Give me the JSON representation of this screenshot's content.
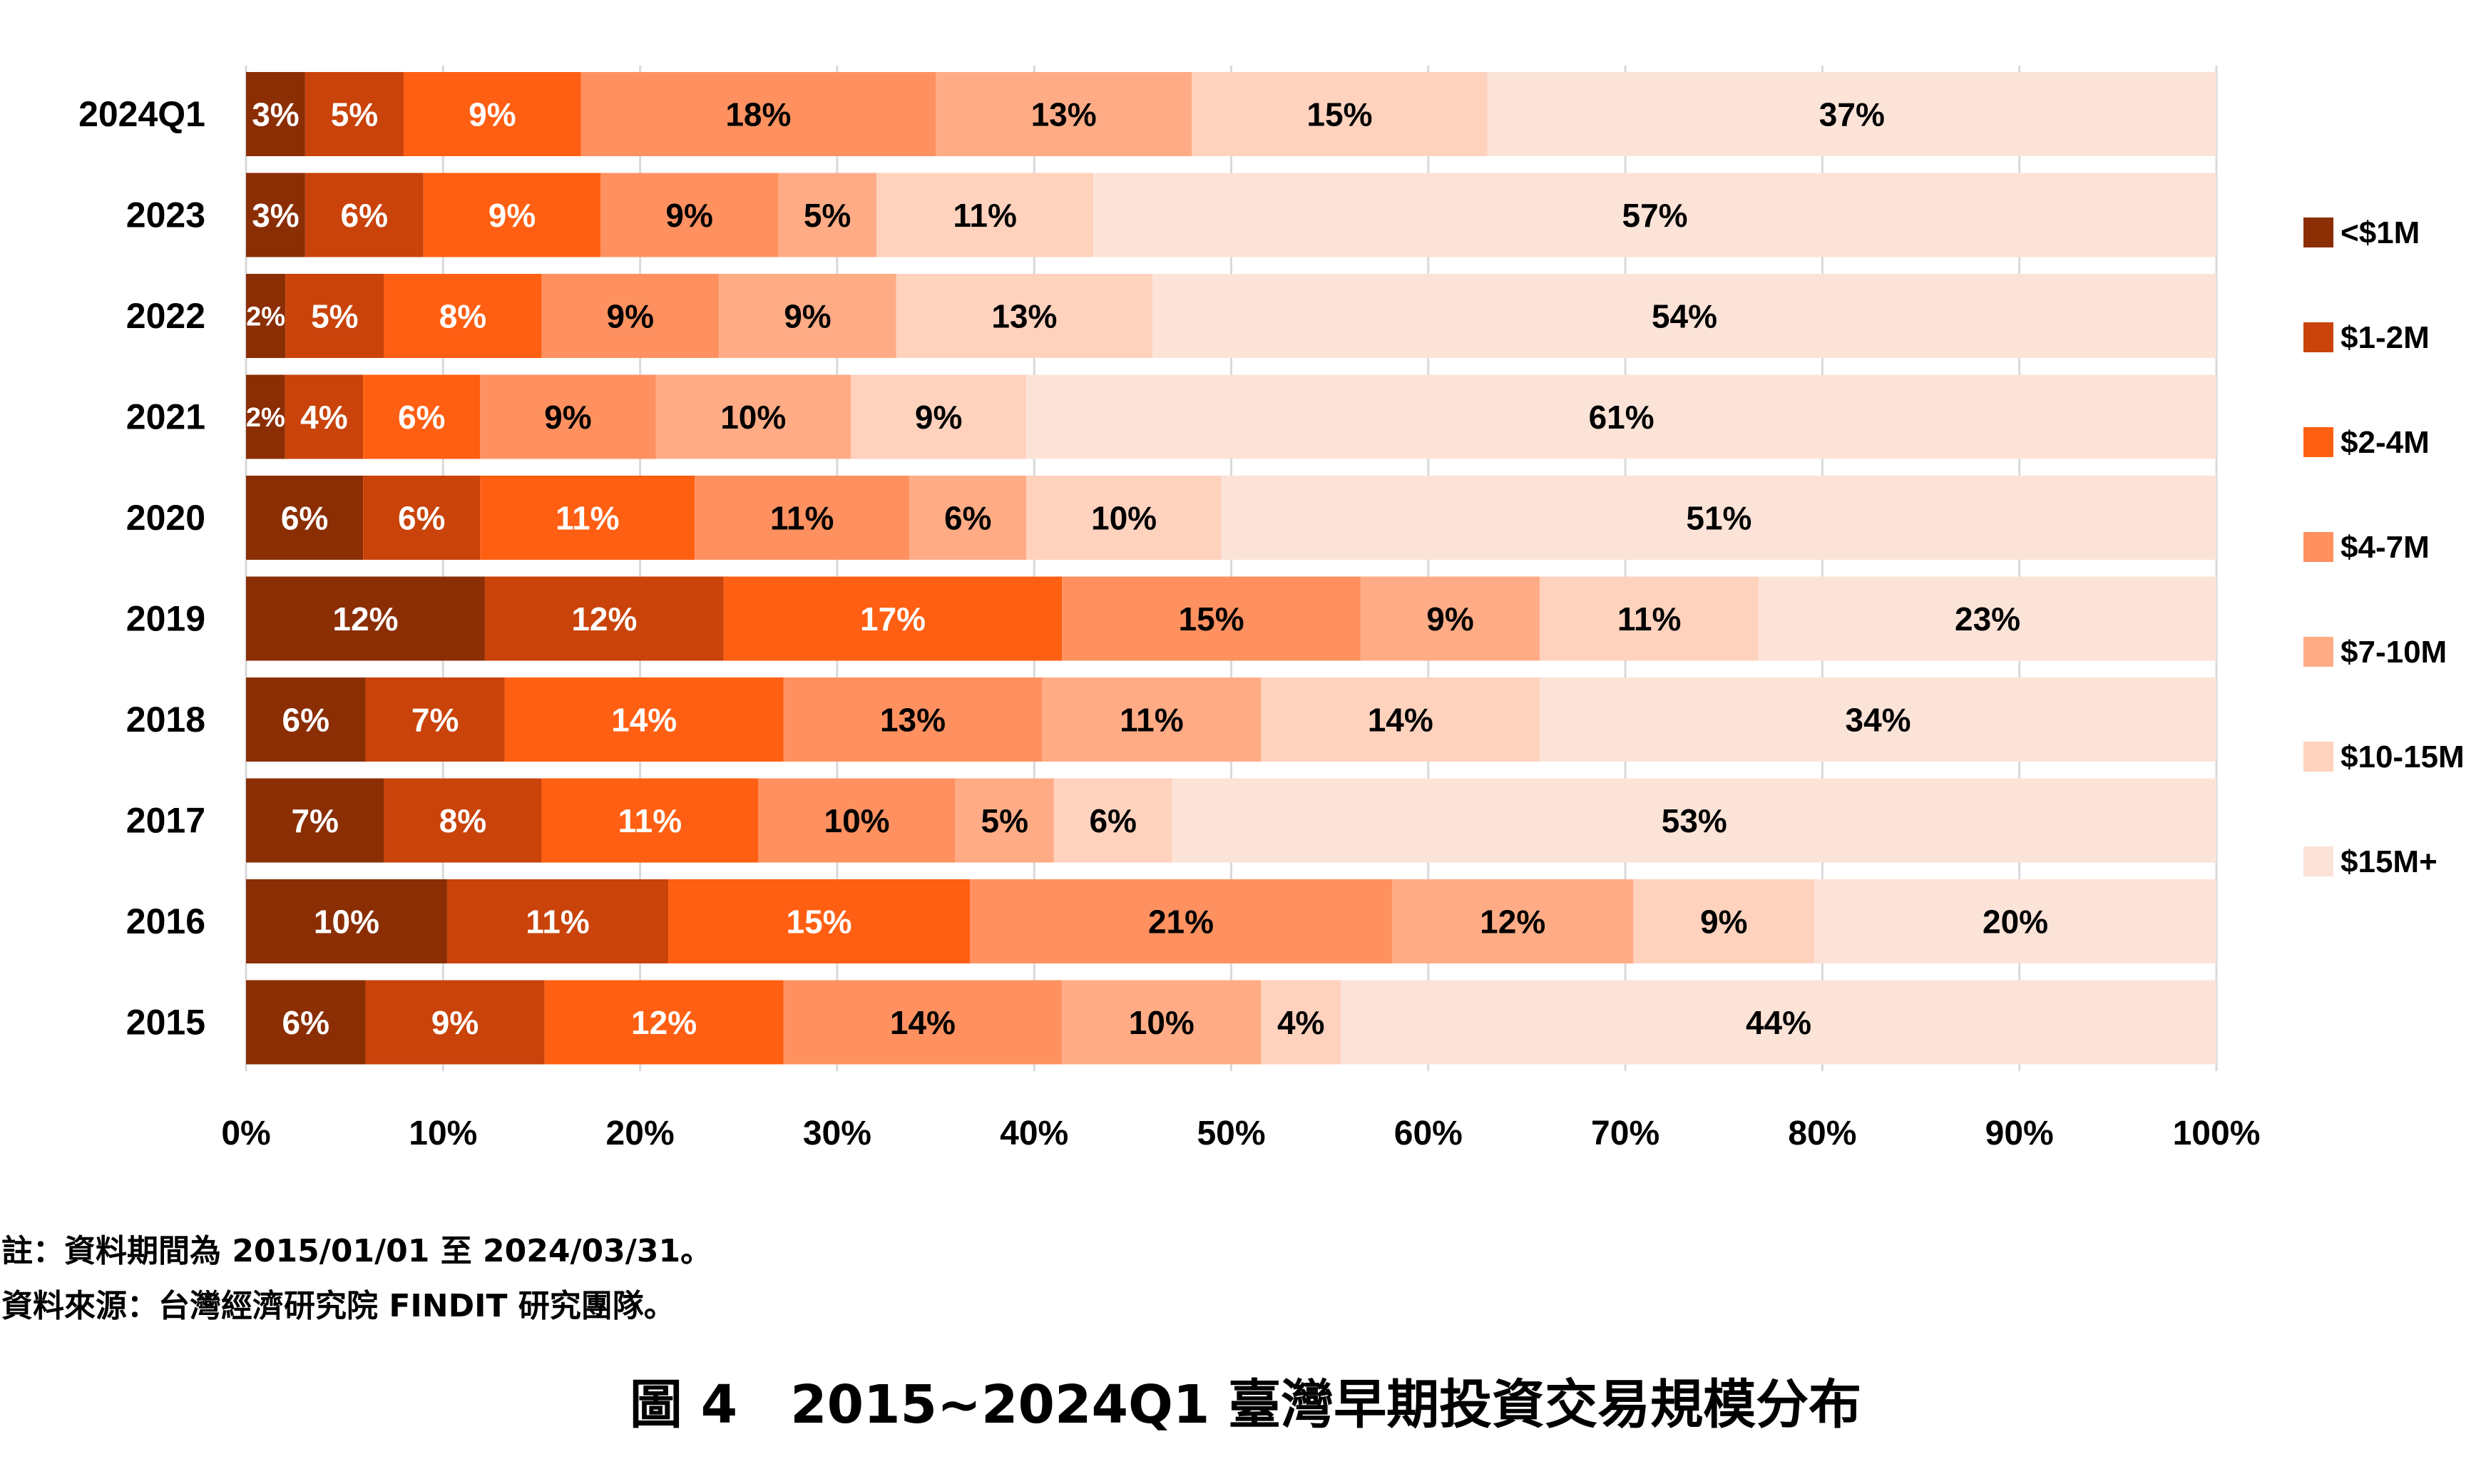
{
  "chart_data": {
    "type": "bar",
    "orientation": "horizontal",
    "stacked": "percent",
    "categories": [
      "2024Q1",
      "2023",
      "2022",
      "2021",
      "2020",
      "2019",
      "2018",
      "2017",
      "2016",
      "2015"
    ],
    "series": [
      {
        "name": "<$1M",
        "color": "#8B2E04",
        "values": [
          3,
          3,
          2,
          2,
          6,
          12,
          6,
          7,
          10,
          6
        ]
      },
      {
        "name": "$1-2M",
        "color": "#C9430A",
        "values": [
          5,
          6,
          5,
          4,
          6,
          12,
          7,
          8,
          11,
          9
        ]
      },
      {
        "name": "$2-4M",
        "color": "#FF5F12",
        "values": [
          9,
          9,
          8,
          6,
          11,
          17,
          14,
          11,
          15,
          12
        ]
      },
      {
        "name": "$4-7M",
        "color": "#FF9160",
        "values": [
          18,
          9,
          9,
          9,
          11,
          15,
          13,
          10,
          21,
          14
        ]
      },
      {
        "name": "$7-10M",
        "color": "#FFAC86",
        "values": [
          13,
          5,
          9,
          10,
          6,
          9,
          11,
          5,
          12,
          10
        ]
      },
      {
        "name": "$10-15M",
        "color": "#FFD2BE",
        "values": [
          15,
          11,
          13,
          9,
          10,
          11,
          14,
          6,
          9,
          4
        ]
      },
      {
        "name": "$15M+",
        "color": "#FCE3D8",
        "values": [
          37,
          57,
          54,
          61,
          51,
          23,
          34,
          53,
          20,
          44
        ]
      }
    ],
    "xlim": [
      0,
      100
    ],
    "x_ticks": [
      "0%",
      "10%",
      "20%",
      "30%",
      "40%",
      "50%",
      "60%",
      "70%",
      "80%",
      "90%",
      "100%"
    ],
    "grid": "vertical",
    "legend_position": "right"
  },
  "notes": {
    "line1": "註：資料期間為 2015/01/01 至 2024/03/31。",
    "line2": "資料來源：台灣經濟研究院 FINDIT 研究團隊。"
  },
  "caption": "圖 4　2015~2024Q1 臺灣早期投資交易規模分布"
}
